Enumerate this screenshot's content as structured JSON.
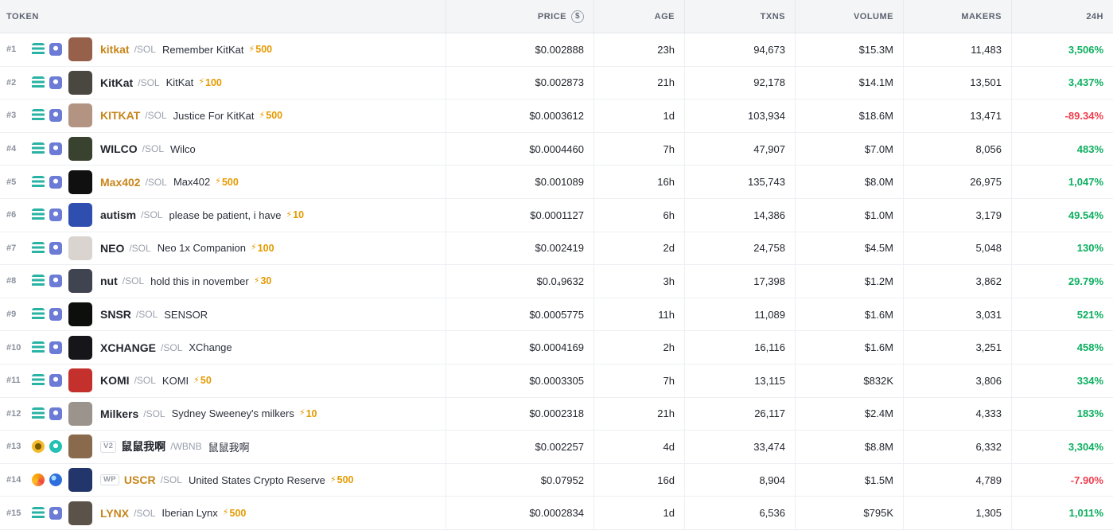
{
  "colors": {
    "green": "#0caf60",
    "red": "#ef3e4e",
    "gold": "#c7861c",
    "boost": "#e59a00"
  },
  "header": {
    "columns": [
      "TOKEN",
      "PRICE",
      "AGE",
      "TXNS",
      "VOLUME",
      "MAKERS",
      "24H"
    ],
    "usd_toggle": "$"
  },
  "rows": [
    {
      "rank": "#1",
      "symbol": "kitkat",
      "gold": true,
      "pair": "/SOL",
      "name": "Remember KitKat",
      "boost": "500",
      "badge": "",
      "price": "$0.002888",
      "age": "23h",
      "txns": "94,673",
      "volume": "$15.3M",
      "makers": "11,483",
      "change": "3,506%",
      "dir": "up",
      "avatar_color": "#96604a",
      "icons": [
        "teal-bars",
        "blue-square"
      ]
    },
    {
      "rank": "#2",
      "symbol": "KitKat",
      "gold": false,
      "pair": "/SOL",
      "name": "KitKat",
      "boost": "100",
      "badge": "",
      "price": "$0.002873",
      "age": "21h",
      "txns": "92,178",
      "volume": "$14.1M",
      "makers": "13,501",
      "change": "3,437%",
      "dir": "up",
      "avatar_color": "#4a4640",
      "icons": [
        "teal-bars",
        "blue-square"
      ]
    },
    {
      "rank": "#3",
      "symbol": "KITKAT",
      "gold": true,
      "pair": "/SOL",
      "name": "Justice For KitKat",
      "boost": "500",
      "badge": "",
      "price": "$0.0003612",
      "age": "1d",
      "txns": "103,934",
      "volume": "$18.6M",
      "makers": "13,471",
      "change": "-89.34%",
      "dir": "down",
      "avatar_color": "#b39482",
      "icons": [
        "teal-bars",
        "blue-square"
      ]
    },
    {
      "rank": "#4",
      "symbol": "WILCO",
      "gold": false,
      "pair": "/SOL",
      "name": "Wilco",
      "boost": "",
      "badge": "",
      "price": "$0.0004460",
      "age": "7h",
      "txns": "47,907",
      "volume": "$7.0M",
      "makers": "8,056",
      "change": "483%",
      "dir": "up",
      "avatar_color": "#39412f",
      "icons": [
        "teal-bars",
        "blue-square"
      ]
    },
    {
      "rank": "#5",
      "symbol": "Max402",
      "gold": true,
      "pair": "/SOL",
      "name": "Max402",
      "boost": "500",
      "badge": "",
      "price": "$0.001089",
      "age": "16h",
      "txns": "135,743",
      "volume": "$8.0M",
      "makers": "26,975",
      "change": "1,047%",
      "dir": "up",
      "avatar_color": "#101010",
      "icons": [
        "teal-bars",
        "blue-square"
      ]
    },
    {
      "rank": "#6",
      "symbol": "autism",
      "gold": false,
      "pair": "/SOL",
      "name": "please be patient, i have",
      "boost": "10",
      "badge": "",
      "price": "$0.0001127",
      "age": "6h",
      "txns": "14,386",
      "volume": "$1.0M",
      "makers": "3,179",
      "change": "49.54%",
      "dir": "up",
      "avatar_color": "#2e4fb0",
      "icons": [
        "teal-bars",
        "blue-square"
      ]
    },
    {
      "rank": "#7",
      "symbol": "NEO",
      "gold": false,
      "pair": "/SOL",
      "name": "Neo 1x Companion",
      "boost": "100",
      "badge": "",
      "price": "$0.002419",
      "age": "2d",
      "txns": "24,758",
      "volume": "$4.5M",
      "makers": "5,048",
      "change": "130%",
      "dir": "up",
      "avatar_color": "#d9d4cf",
      "icons": [
        "teal-bars",
        "blue-square"
      ]
    },
    {
      "rank": "#8",
      "symbol": "nut",
      "gold": false,
      "pair": "/SOL",
      "name": "hold this in november",
      "boost": "30",
      "badge": "",
      "price": "$0.0₄9632",
      "age": "3h",
      "txns": "17,398",
      "volume": "$1.2M",
      "makers": "3,862",
      "change": "29.79%",
      "dir": "up",
      "avatar_color": "#3f4450",
      "icons": [
        "teal-bars",
        "blue-square"
      ]
    },
    {
      "rank": "#9",
      "symbol": "SNSR",
      "gold": false,
      "pair": "/SOL",
      "name": "SENSOR",
      "boost": "",
      "badge": "",
      "price": "$0.0005775",
      "age": "11h",
      "txns": "11,089",
      "volume": "$1.6M",
      "makers": "3,031",
      "change": "521%",
      "dir": "up",
      "avatar_color": "#0c0f0c",
      "icons": [
        "teal-bars",
        "blue-square"
      ]
    },
    {
      "rank": "#10",
      "symbol": "XCHANGE",
      "gold": false,
      "pair": "/SOL",
      "name": "XChange",
      "boost": "",
      "badge": "",
      "price": "$0.0004169",
      "age": "2h",
      "txns": "16,116",
      "volume": "$1.6M",
      "makers": "3,251",
      "change": "458%",
      "dir": "up",
      "avatar_color": "#15151a",
      "icons": [
        "teal-bars",
        "blue-square"
      ]
    },
    {
      "rank": "#11",
      "symbol": "KOMI",
      "gold": false,
      "pair": "/SOL",
      "name": "KOMI",
      "boost": "50",
      "badge": "",
      "price": "$0.0003305",
      "age": "7h",
      "txns": "13,115",
      "volume": "$832K",
      "makers": "3,806",
      "change": "334%",
      "dir": "up",
      "avatar_color": "#c4302b",
      "icons": [
        "teal-bars",
        "blue-square"
      ]
    },
    {
      "rank": "#12",
      "symbol": "Milkers",
      "gold": false,
      "pair": "/SOL",
      "name": "Sydney Sweeney's milkers",
      "boost": "10",
      "badge": "",
      "price": "$0.0002318",
      "age": "21h",
      "txns": "26,117",
      "volume": "$2.4M",
      "makers": "4,333",
      "change": "183%",
      "dir": "up",
      "avatar_color": "#9a948c",
      "icons": [
        "teal-bars",
        "blue-square"
      ]
    },
    {
      "rank": "#13",
      "symbol": "鼠鼠我啊",
      "gold": false,
      "pair": "/WBNB",
      "name": "鼠鼠我啊",
      "boost": "",
      "badge": "V2",
      "price": "$0.002257",
      "age": "4d",
      "txns": "33,474",
      "volume": "$8.8M",
      "makers": "6,332",
      "change": "3,304%",
      "dir": "up",
      "avatar_color": "#8a6a4d",
      "icons": [
        "yellow-circle",
        "teal-circle"
      ]
    },
    {
      "rank": "#14",
      "symbol": "USCR",
      "gold": true,
      "pair": "/SOL",
      "name": "United States Crypto Reserve",
      "boost": "500",
      "badge": "WP",
      "price": "$0.07952",
      "age": "16d",
      "txns": "8,904",
      "volume": "$1.5M",
      "makers": "4,789",
      "change": "-7.90%",
      "dir": "down",
      "avatar_color": "#23366b",
      "icons": [
        "orange-circle",
        "blue-circle"
      ]
    },
    {
      "rank": "#15",
      "symbol": "LYNX",
      "gold": true,
      "pair": "/SOL",
      "name": "Iberian Lynx",
      "boost": "500",
      "badge": "",
      "price": "$0.0002834",
      "age": "1d",
      "txns": "6,536",
      "volume": "$795K",
      "makers": "1,305",
      "change": "1,011%",
      "dir": "up",
      "avatar_color": "#5b5349",
      "icons": [
        "teal-bars",
        "blue-square"
      ]
    }
  ]
}
